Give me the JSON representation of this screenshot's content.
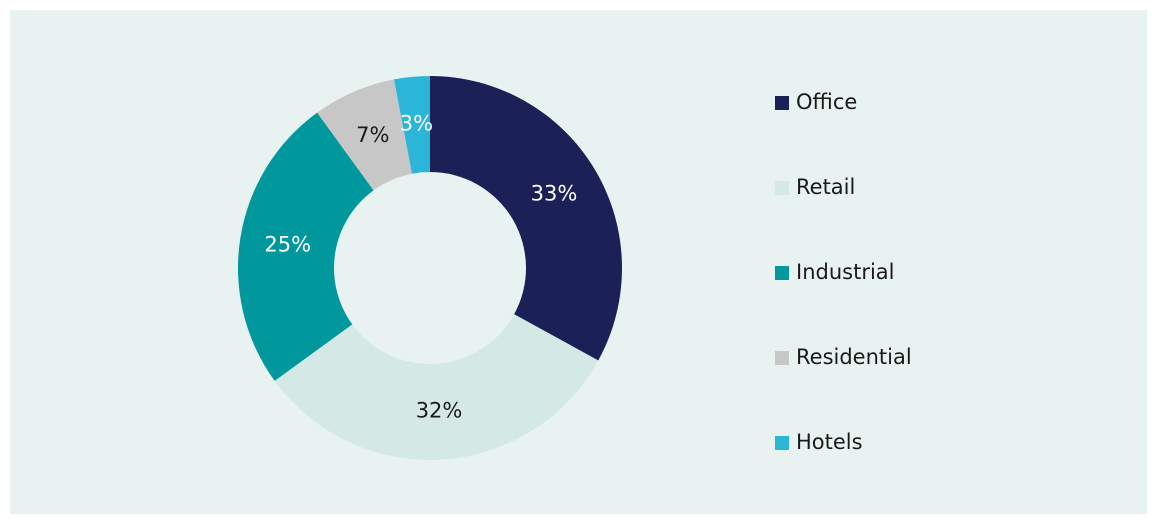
{
  "chart_data": {
    "type": "donut",
    "categories": [
      "Office",
      "Retail",
      "Industrial",
      "Residential",
      "Hotels"
    ],
    "values": [
      33,
      32,
      25,
      7,
      3
    ],
    "value_labels": [
      "33%",
      "32%",
      "25%",
      "7%",
      "3%"
    ],
    "colors": [
      "#1b2156",
      "#d4e9e5",
      "#00989d",
      "#c7c7c7",
      "#2bb5d7"
    ],
    "legend": "right"
  }
}
